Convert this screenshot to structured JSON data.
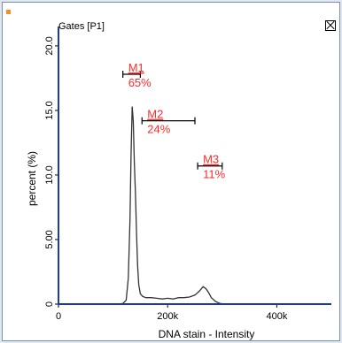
{
  "window": {
    "title": "Gates [P1]",
    "close_icon": "close-box-icon"
  },
  "colors": {
    "accent_square": "#ff8a1f",
    "marker": "#ff2a2a",
    "histogram": "#333333",
    "axis": "#1a3aa8"
  },
  "chart_data": {
    "type": "line",
    "xlabel": "DNA stain - Intensity",
    "ylabel": "percent (%)",
    "xlim": [
      0,
      500000
    ],
    "ylim": [
      0,
      21.5
    ],
    "x_ticks": [
      {
        "value": 0,
        "label": "0"
      },
      {
        "value": 200000,
        "label": "200k"
      },
      {
        "value": 400000,
        "label": "400k"
      }
    ],
    "y_ticks": [
      {
        "value": 0,
        "label": "0"
      },
      {
        "value": 5,
        "label": "5.00"
      },
      {
        "value": 10,
        "label": "10.0"
      },
      {
        "value": 15,
        "label": "15.0"
      },
      {
        "value": 20,
        "label": "20.0"
      }
    ],
    "series": [
      {
        "x": [
          110000,
          118000,
          124000,
          128000,
          131000,
          133000,
          135000,
          137000,
          139000,
          141000,
          143000,
          145000,
          147000,
          150000,
          154000,
          160000,
          170000,
          180000,
          190000,
          200000,
          210000,
          220000,
          230000,
          240000,
          250000,
          258000,
          265000,
          270000,
          275000,
          280000,
          288000,
          296000,
          305000
        ],
        "values": [
          0,
          0.05,
          0.3,
          2.0,
          6.5,
          11.5,
          15.3,
          14.2,
          11.0,
          8.5,
          5.5,
          3.0,
          1.5,
          0.8,
          0.6,
          0.5,
          0.5,
          0.45,
          0.4,
          0.45,
          0.4,
          0.5,
          0.5,
          0.55,
          0.7,
          1.0,
          1.35,
          1.2,
          0.9,
          0.5,
          0.2,
          0.05,
          0
        ]
      }
    ],
    "markers": [
      {
        "name": "M1",
        "percent": "65%",
        "x_start": 118000,
        "x_end": 150000,
        "y": 17.8
      },
      {
        "name": "M2",
        "percent": "24%",
        "x_start": 153000,
        "x_end": 250000,
        "y": 14.2
      },
      {
        "name": "M3",
        "percent": "11%",
        "x_start": 255000,
        "x_end": 300000,
        "y": 10.7
      }
    ]
  }
}
